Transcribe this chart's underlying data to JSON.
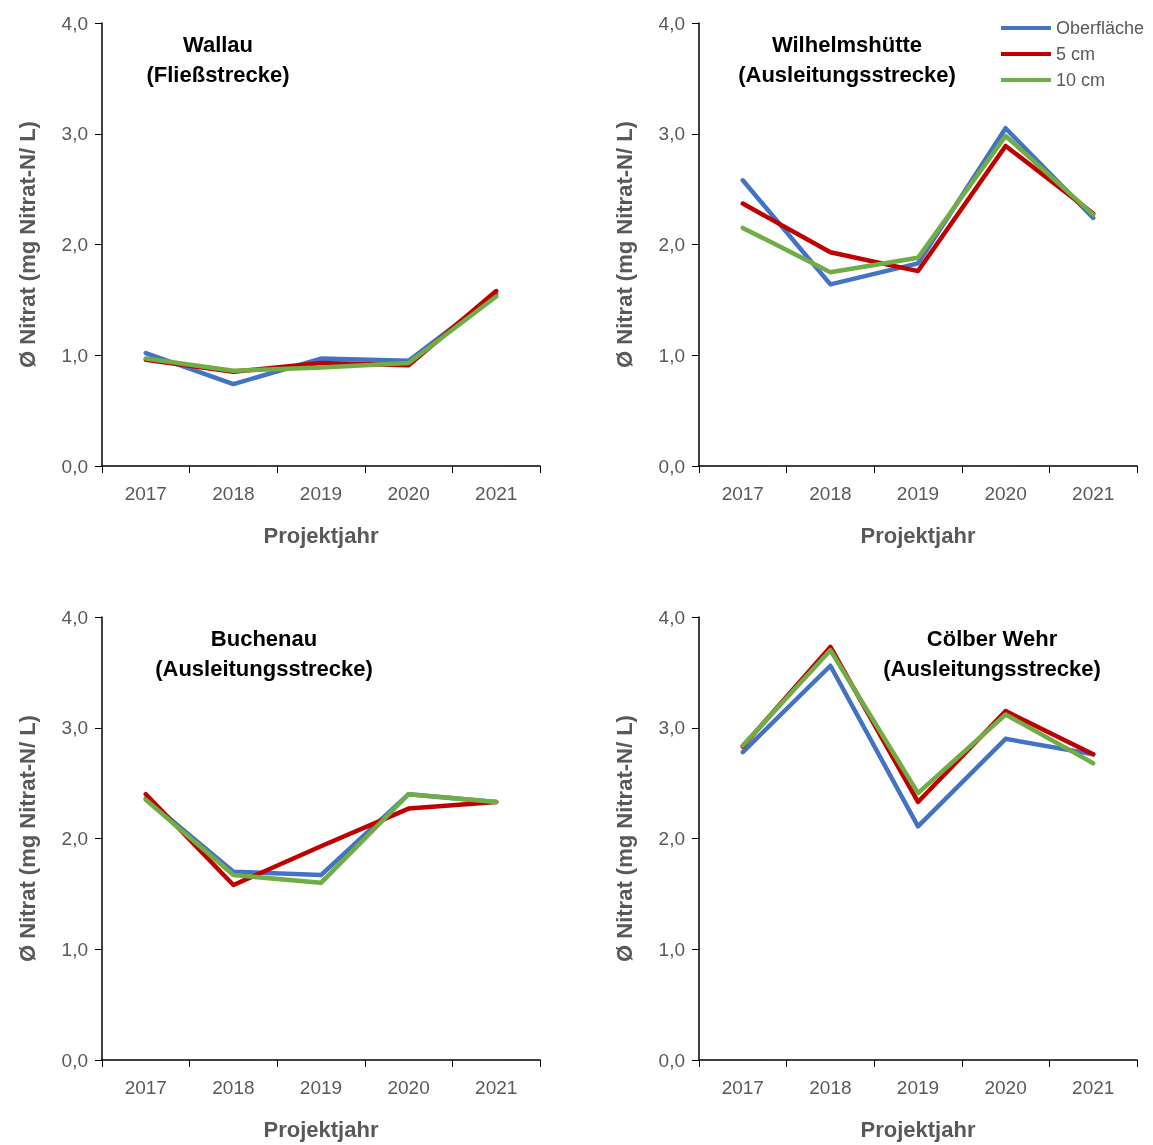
{
  "chart_data": [
    {
      "type": "line",
      "title": "Wallau\n(Fließstrecke)",
      "xlabel": "Projektjahr",
      "ylabel": "Ø Nitrat (mg Nitrat-N/ L)",
      "categories": [
        "2017",
        "2018",
        "2019",
        "2020",
        "2021"
      ],
      "ylim": [
        0,
        4
      ],
      "yticks": [
        {
          "value": 0,
          "label": "0,0"
        },
        {
          "value": 1,
          "label": "1,0"
        },
        {
          "value": 2,
          "label": "2,0"
        },
        {
          "value": 3,
          "label": "3,0"
        },
        {
          "value": 4,
          "label": "4,0"
        }
      ],
      "grid": false,
      "legend": false,
      "marker": "none",
      "line_style": "solid",
      "series": [
        {
          "color": "#4472c4",
          "values": [
            1.02,
            0.74,
            0.97,
            0.95,
            1.55
          ]
        },
        {
          "color": "#c00000",
          "values": [
            0.96,
            0.85,
            0.93,
            0.91,
            1.58
          ]
        },
        {
          "color": "#70ad47",
          "values": [
            0.97,
            0.86,
            0.89,
            0.93,
            1.53
          ]
        }
      ]
    },
    {
      "type": "line",
      "title": "Wilhelmshütte\n(Ausleitungsstrecke)",
      "xlabel": "Projektjahr",
      "ylabel": "Ø Nitrat (mg Nitrat-N/ L)",
      "categories": [
        "2017",
        "2018",
        "2019",
        "2020",
        "2021"
      ],
      "ylim": [
        0,
        4
      ],
      "yticks": [
        {
          "value": 0,
          "label": "0,0"
        },
        {
          "value": 1,
          "label": "1,0"
        },
        {
          "value": 2,
          "label": "2,0"
        },
        {
          "value": 3,
          "label": "3,0"
        },
        {
          "value": 4,
          "label": "4,0"
        }
      ],
      "grid": false,
      "legend": "top right",
      "marker": "none",
      "line_style": "solid",
      "series": [
        {
          "name": "Oberfläche",
          "color": "#4472c4",
          "values": [
            2.58,
            1.64,
            1.83,
            3.05,
            2.24
          ]
        },
        {
          "name": "5 cm",
          "color": "#c00000",
          "values": [
            2.37,
            1.93,
            1.76,
            2.89,
            2.28
          ]
        },
        {
          "name": "10 cm",
          "color": "#70ad47",
          "values": [
            2.15,
            1.75,
            1.88,
            2.98,
            2.27
          ]
        }
      ]
    },
    {
      "type": "line",
      "title": "Buchenau\n(Ausleitungsstrecke)",
      "xlabel": "Projektjahr",
      "ylabel": "Ø Nitrat (mg Nitrat-N/ L)",
      "categories": [
        "2017",
        "2018",
        "2019",
        "2020",
        "2021"
      ],
      "ylim": [
        0,
        4
      ],
      "yticks": [
        {
          "value": 0,
          "label": "0,0"
        },
        {
          "value": 1,
          "label": "1,0"
        },
        {
          "value": 2,
          "label": "2,0"
        },
        {
          "value": 3,
          "label": "3,0"
        },
        {
          "value": 4,
          "label": "4,0"
        }
      ],
      "grid": false,
      "legend": false,
      "marker": "none",
      "line_style": "solid",
      "series": [
        {
          "color": "#4472c4",
          "values": [
            2.36,
            1.7,
            1.67,
            2.4,
            2.33
          ]
        },
        {
          "color": "#c00000",
          "values": [
            2.4,
            1.58,
            1.93,
            2.27,
            2.33
          ]
        },
        {
          "color": "#70ad47",
          "values": [
            2.35,
            1.67,
            1.6,
            2.4,
            2.33
          ]
        }
      ]
    },
    {
      "type": "line",
      "title": "Cölber Wehr\n(Ausleitungsstrecke)",
      "xlabel": "Projektjahr",
      "ylabel": "Ø Nitrat (mg Nitrat-N/ L)",
      "categories": [
        "2017",
        "2018",
        "2019",
        "2020",
        "2021"
      ],
      "ylim": [
        0,
        4
      ],
      "yticks": [
        {
          "value": 0,
          "label": "0,0"
        },
        {
          "value": 1,
          "label": "1,0"
        },
        {
          "value": 2,
          "label": "2,0"
        },
        {
          "value": 3,
          "label": "3,0"
        },
        {
          "value": 4,
          "label": "4,0"
        }
      ],
      "grid": false,
      "legend": false,
      "marker": "none",
      "line_style": "solid",
      "series": [
        {
          "color": "#4472c4",
          "values": [
            2.78,
            3.56,
            2.11,
            2.9,
            2.76
          ]
        },
        {
          "color": "#c00000",
          "values": [
            2.83,
            3.73,
            2.33,
            3.15,
            2.76
          ]
        },
        {
          "color": "#70ad47",
          "values": [
            2.84,
            3.7,
            2.41,
            3.12,
            2.68
          ]
        }
      ]
    }
  ]
}
